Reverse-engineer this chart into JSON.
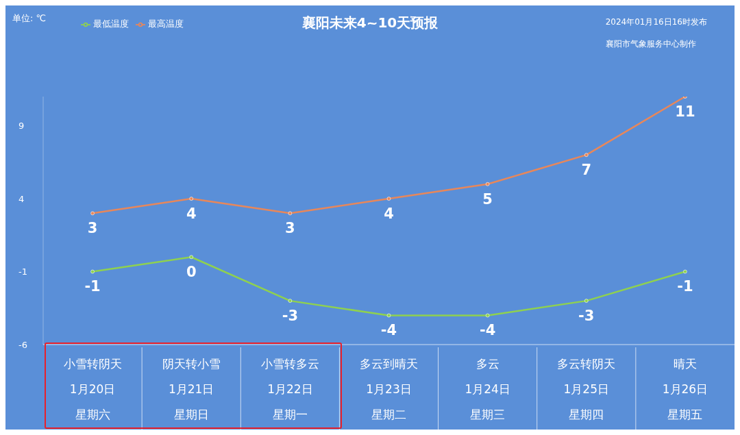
{
  "chart_data": {
    "type": "line",
    "title": "襄阳未来4~10天预报",
    "annotations": [
      "单位: ℃",
      "2024年01月16日16时发布",
      "襄阳市气象服务中心制作"
    ],
    "categories": [
      "小雪转阴天1月20日星期六",
      "阴天转小雪1月21日星期日",
      "小雪转多云1月22日星期一",
      "多云到晴天1月23日星期二",
      "多云1月24日星期三",
      "多云转阴天1月25日星期四",
      "晴天1月26日星期五"
    ],
    "series": [
      {
        "name": "最低温度",
        "color": "#8fd14f",
        "values": [
          -1,
          0,
          -3,
          -4,
          -4,
          -3,
          -1
        ]
      },
      {
        "name": "最高温度",
        "color": "#e8875a",
        "values": [
          3,
          4,
          3,
          4,
          5,
          7,
          11
        ]
      }
    ],
    "ylim": [
      -6,
      11
    ],
    "yticks": [
      -6,
      -1,
      4,
      9
    ],
    "grid": false,
    "legend": "top left",
    "marker": "circle",
    "line_style": "solid",
    "data_labels": true
  }
}
